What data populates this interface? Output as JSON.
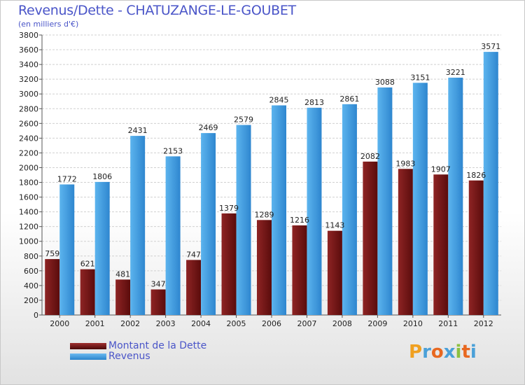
{
  "title": "Revenus/Dette - CHATUZANGE-LE-GOUBET",
  "subtitle": "(en milliers d'€)",
  "chart_data": {
    "type": "bar",
    "categories": [
      "2000",
      "2001",
      "2002",
      "2003",
      "2004",
      "2005",
      "2006",
      "2007",
      "2008",
      "2009",
      "2010",
      "2011",
      "2012"
    ],
    "series": [
      {
        "name": "Montant de la Dette",
        "color": "#7a1c1c",
        "values": [
          759,
          621,
          481,
          347,
          747,
          1379,
          1289,
          1216,
          1143,
          2082,
          1983,
          1907,
          1826
        ]
      },
      {
        "name": "Revenus",
        "color": "#3a9ae0",
        "values": [
          1772,
          1806,
          2431,
          2153,
          2469,
          2579,
          2845,
          2813,
          2861,
          3088,
          3151,
          3221,
          3571
        ]
      }
    ],
    "ylim": [
      0,
      3800
    ],
    "ytick_step": 200,
    "grid": true,
    "legend": "bottom-left",
    "xlabel": "",
    "ylabel": ""
  },
  "legend": {
    "debt_label": "Montant de la Dette",
    "revenue_label": "Revenus"
  },
  "watermark": {
    "p": "P",
    "r": "r",
    "o": "o",
    "x": "x",
    "i": "i",
    "t": "t",
    "i2": "i"
  }
}
